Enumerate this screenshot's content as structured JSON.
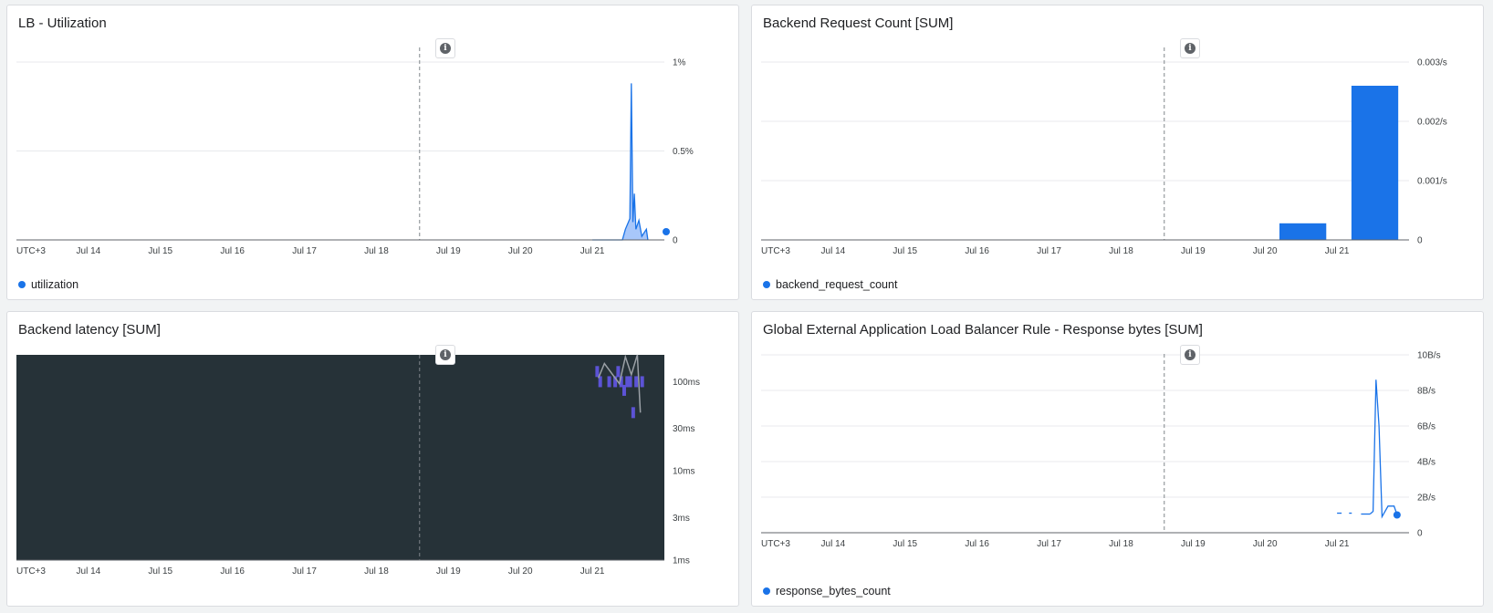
{
  "colors": {
    "series": "#1a73e8",
    "series_fill": "#a8c7fa",
    "heatmap_bg": "#263238",
    "heatmap_cell": "#5c53d6",
    "heatmap_line": "#9aa0a6",
    "grid": "#e8eaed",
    "axis": "#5f6368"
  },
  "icons": {
    "info": "info-icon",
    "info_glyph": "i"
  },
  "x_axis_labels": [
    "UTC+3",
    "Jul 14",
    "Jul 15",
    "Jul 16",
    "Jul 17",
    "Jul 18",
    "Jul 19",
    "Jul 20",
    "Jul 21"
  ],
  "chart_data": [
    {
      "title": "LB - Utilization",
      "type": "area",
      "legend": "utilization",
      "y_ticks": [
        "1%",
        "0.5%",
        "0"
      ],
      "ylim": [
        0,
        1
      ],
      "unit": "%",
      "x_start": "Jul 13",
      "x_end": "Jul 22",
      "series": [
        {
          "name": "utilization",
          "points": [
            [
              "Jul 21 00:00",
              0
            ],
            [
              "Jul 21 10:00",
              0
            ],
            [
              "Jul 21 11:00",
              0.06
            ],
            [
              "Jul 21 12:00",
              0.1
            ],
            [
              "Jul 21 12:30",
              0.12
            ],
            [
              "Jul 21 13:00",
              0.88
            ],
            [
              "Jul 21 13:30",
              0.1
            ],
            [
              "Jul 21 14:00",
              0.26
            ],
            [
              "Jul 21 14:30",
              0.06
            ],
            [
              "Jul 21 15:30",
              0.11
            ],
            [
              "Jul 21 16:30",
              0.02
            ],
            [
              "Jul 21 18:00",
              0.06
            ],
            [
              "Jul 21 18:30",
              0
            ]
          ]
        }
      ]
    },
    {
      "title": "Backend Request Count [SUM]",
      "type": "bar",
      "legend": "backend_request_count",
      "y_ticks": [
        "0.003/s",
        "0.002/s",
        "0.001/s",
        "0"
      ],
      "ylim": [
        0,
        0.003
      ],
      "unit": "/s",
      "categories": [
        "Jul 20",
        "Jul 21"
      ],
      "values": [
        0.00028,
        0.0026
      ]
    },
    {
      "title": "Backend latency [SUM]",
      "type": "heatmap",
      "legend": "",
      "y_ticks": [
        "100ms",
        "30ms",
        "10ms",
        "3ms",
        "1ms"
      ],
      "y_scale": "log",
      "ylim_ms": [
        1,
        200
      ],
      "cells": [
        [
          "Jul 21 01:00",
          130
        ],
        [
          "Jul 21 02:00",
          100
        ],
        [
          "Jul 21 05:00",
          100
        ],
        [
          "Jul 21 07:00",
          100
        ],
        [
          "Jul 21 08:00",
          130
        ],
        [
          "Jul 21 09:00",
          100
        ],
        [
          "Jul 21 10:00",
          80
        ],
        [
          "Jul 21 11:00",
          100
        ],
        [
          "Jul 21 12:00",
          100
        ],
        [
          "Jul 21 13:00",
          45
        ],
        [
          "Jul 21 14:00",
          100
        ],
        [
          "Jul 21 16:00",
          100
        ]
      ]
    },
    {
      "title": "Global External Application Load Balancer Rule - Response bytes [SUM]",
      "type": "line",
      "legend": "response_bytes_count",
      "y_ticks": [
        "10B/s",
        "8B/s",
        "6B/s",
        "4B/s",
        "2B/s",
        "0"
      ],
      "ylim": [
        0,
        10
      ],
      "unit": "B/s",
      "series": [
        {
          "name": "response_bytes_count",
          "points": [
            [
              "Jul 21 00:00",
              1.1
            ],
            [
              "Jul 21 04:00",
              1.1
            ],
            [
              "Jul 21 08:00",
              1.05
            ],
            [
              "Jul 21 11:00",
              1.05
            ],
            [
              "Jul 21 12:00",
              1.2
            ],
            [
              "Jul 21 13:00",
              8.6
            ],
            [
              "Jul 21 14:00",
              6.0
            ],
            [
              "Jul 21 15:00",
              0.9
            ],
            [
              "Jul 21 17:00",
              1.5
            ],
            [
              "Jul 21 19:00",
              1.5
            ],
            [
              "Jul 21 20:00",
              1.0
            ]
          ]
        }
      ]
    }
  ]
}
